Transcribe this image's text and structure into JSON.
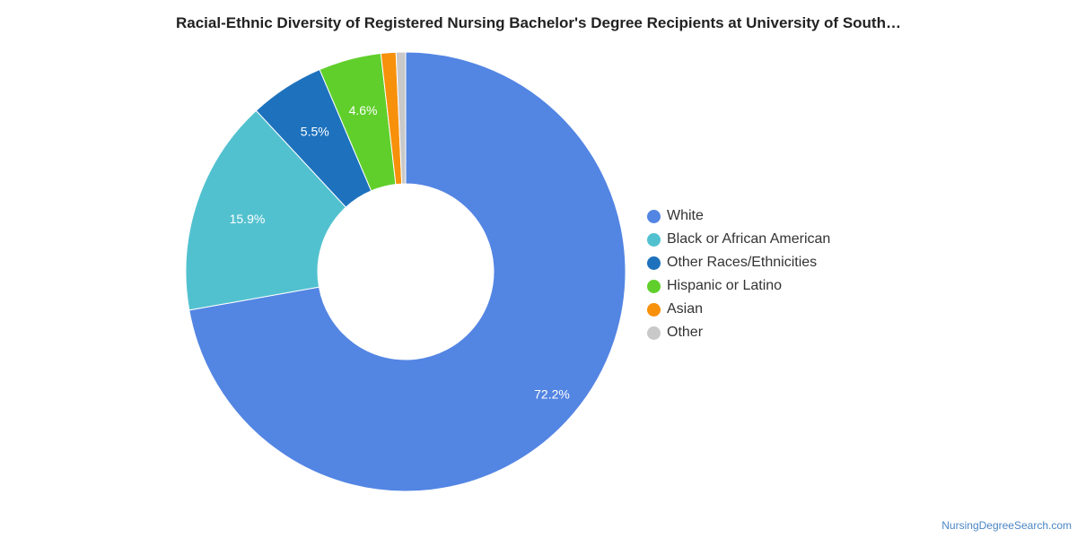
{
  "chart_data": {
    "type": "pie",
    "style": "donut",
    "title": "Racial-Ethnic Diversity of Registered Nursing Bachelor's Degree Recipients at University of South…",
    "slices": [
      {
        "label": "White",
        "value": 72.2,
        "data_label": "72.2%",
        "color": "#5385e3"
      },
      {
        "label": "Black or African American",
        "value": 15.9,
        "data_label": "15.9%",
        "color": "#52c1cf"
      },
      {
        "label": "Other Races/Ethnicities",
        "value": 5.5,
        "data_label": "5.5%",
        "color": "#1e72bd"
      },
      {
        "label": "Hispanic or Latino",
        "value": 4.6,
        "data_label": "4.6%",
        "color": "#60cf2b"
      },
      {
        "label": "Asian",
        "value": 1.1,
        "data_label": "",
        "color": "#f7900a"
      },
      {
        "label": "Other",
        "value": 0.7,
        "data_label": "",
        "color": "#c9c9c9"
      }
    ],
    "legend_position": "right"
  },
  "source": "NursingDegreeSearch.com"
}
